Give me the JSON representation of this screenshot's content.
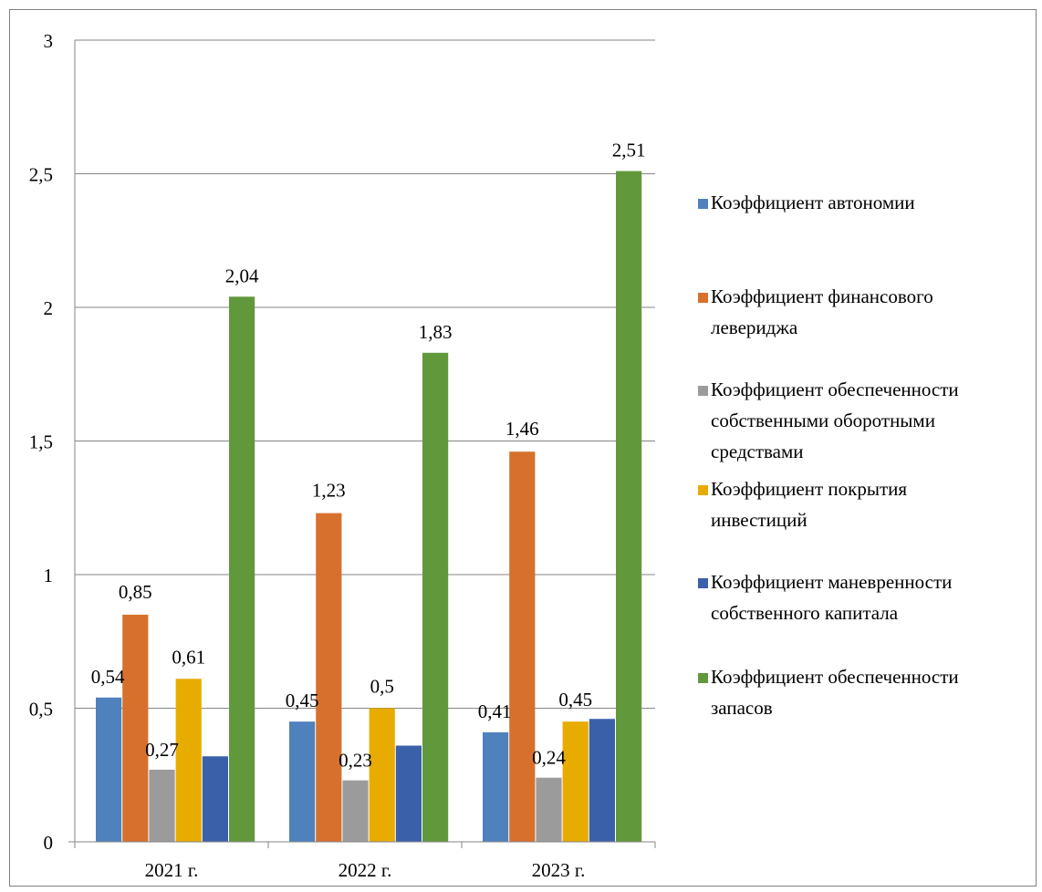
{
  "chart_data": {
    "type": "bar",
    "title": "",
    "xlabel": "",
    "ylabel": "",
    "categories": [
      "2021 г.",
      "2022 г.",
      "2023 г."
    ],
    "ylim": [
      0,
      3
    ],
    "y_ticks": [
      "0",
      "0,5",
      "1",
      "1,5",
      "2",
      "2,5",
      "3"
    ],
    "y_tick_values": [
      0,
      0.5,
      1,
      1.5,
      2,
      2.5,
      3
    ],
    "grid": true,
    "legend_position": "right",
    "series": [
      {
        "name": "Коэффициент автономии",
        "legend_lines": [
          "Коэффициент автономии"
        ],
        "color": "#4F81BD",
        "values": [
          0.54,
          0.45,
          0.41
        ],
        "labels": [
          "0,54",
          "0,45",
          "0,41"
        ]
      },
      {
        "name": "Коэффициент финансового левериджа",
        "legend_lines": [
          "Коэффициент финансового",
          "левериджа"
        ],
        "color": "#D8702D",
        "values": [
          0.85,
          1.23,
          1.46
        ],
        "labels": [
          "0,85",
          "1,23",
          "1,46"
        ]
      },
      {
        "name": "Коэффициент обеспеченности собственными оборотными средствами",
        "legend_lines": [
          "Коэффициент обеспеченности",
          "собственными оборотными",
          "средствами"
        ],
        "color": "#9B9B9B",
        "values": [
          0.27,
          0.23,
          0.24
        ],
        "labels": [
          "0,27",
          "0,23",
          "0,24"
        ]
      },
      {
        "name": "Коэффициент покрытия инвестиций",
        "legend_lines": [
          "Коэффициент покрытия",
          "инвестиций"
        ],
        "color": "#E8AC00",
        "values": [
          0.61,
          0.5,
          0.45
        ],
        "labels": [
          "0,61",
          "0,5",
          "0,45"
        ]
      },
      {
        "name": "Коэффициент маневренности собственного капитала",
        "legend_lines": [
          "Коэффициент маневренности",
          "собственного капитала"
        ],
        "color": "#3B60AA",
        "values": [
          0.32,
          0.36,
          0.46
        ],
        "labels": [
          "",
          "",
          ""
        ]
      },
      {
        "name": "Коэффициент обеспеченности запасов",
        "legend_lines": [
          "Коэффициент обеспеченности",
          "запасов"
        ],
        "color": "#62983C",
        "values": [
          2.04,
          1.83,
          2.51
        ],
        "labels": [
          "2,04",
          "1,83",
          "2,51"
        ]
      }
    ]
  }
}
